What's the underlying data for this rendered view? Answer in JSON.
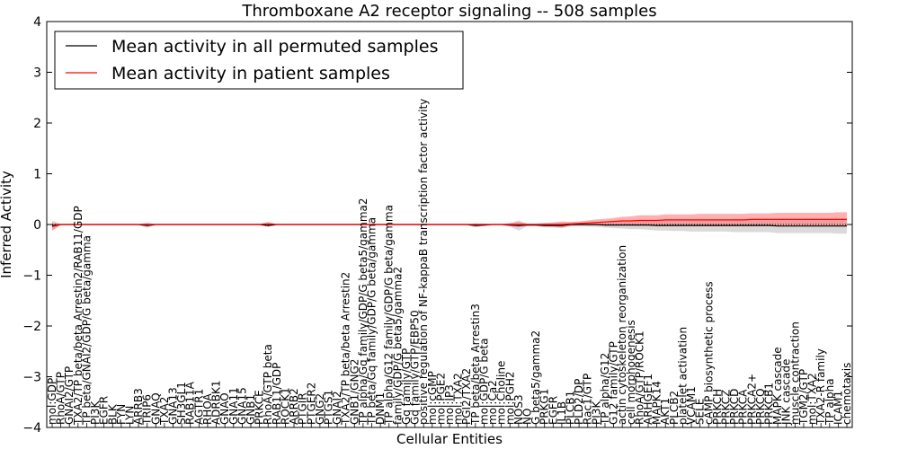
{
  "chart_data": {
    "type": "line",
    "title": "Thromboxane A2 receptor signaling -- 508 samples",
    "xlabel": "Cellular Entities",
    "ylabel": "Inferred Activity",
    "ylim": [
      -4,
      4
    ],
    "yticks": [
      -4,
      -3,
      -2,
      -1,
      0,
      1,
      2,
      3,
      4
    ],
    "legend_position": "top-left",
    "colors": {
      "permuted": "#000000",
      "patient": "#ff0000",
      "permuted_band": "#bbbbbb",
      "patient_band": "#ff7070"
    },
    "categories": [
      "mol:GDP",
      "RhoA/GTP",
      "GNAI2/GTP",
      "TXA2/TP beta/beta Arrestin2/RAB11/GDP",
      "TP beta/GNAI2/GDP/G beta/gamma",
      "PI3K",
      "EGFR",
      "BLK",
      "FYN",
      "LYN",
      "ARRB3",
      "TRIP6",
      "GNAQ",
      "TXA2",
      "GNA13",
      "SH3GL1",
      "RAB11A",
      "AGTR1",
      "RHOA",
      "ADRBK1",
      "GNAO",
      "GNA11",
      "GNA15",
      "GNB1",
      "PRKCE",
      "RhoA/GTP beta",
      "RAB11/GDP",
      "ROCK1",
      "ARRB2",
      "PTGIR",
      "PTGER2",
      "GNG2",
      "PTGS1",
      "GNAI2",
      "TXA2/TP beta/beta Arrestin2",
      "GNB1/GNG2",
      "TP alpha/Gq family/GDP/G beta5/gamma2",
      "TP beta/Gq family/GDP/G beta/gamma",
      "DNM1",
      "TP alpha/G12 family/GDP/G beta/gamma",
      "family/GDP/G beta5/gamma2",
      "Gq family/GTP",
      "Gq family/GTP/EBP50",
      "positive regulation of NF-kappaB transcription factor activity",
      "mol:cGMP",
      "mol:PGE2",
      "mol:IP3",
      "mol:TXA2",
      "PGI2/TXA2",
      "TP beta/beta Arrestin3",
      "mol:GDP/G beta",
      "mol:Ca2",
      "mol:Choline",
      "mol:PGH2",
      "NOS3",
      "NO",
      "G beta5/gamma2",
      "PRKG1",
      "EGFR",
      "IL1B",
      "PLCB1",
      "PLD2/DP",
      "Rac1/GTP",
      "PI3K",
      "TP alpha/G12",
      "G12 family/GTP",
      "actin cytoskeleton reorganization",
      "cell morphogenesis",
      "RhoA/GTP/ROCK1",
      "ARHGEF1",
      "MAPK14",
      "AKT1",
      "PLCB2",
      "platelet activation",
      "VCAM1",
      "SELE",
      "cAMP biosynthetic process",
      "PRKCH",
      "PRKCZ",
      "PRKCD",
      "PRKCA",
      "PRKCA2+",
      "PRKCQ",
      "PRKCB1",
      "MAPK cascade",
      "JNK cascade",
      "muscle contraction",
      "TGM2/GTP",
      "mol:TXA2",
      "TXA2-R family",
      "TP alpha",
      "ICAM1",
      "chemotaxis"
    ],
    "series": [
      {
        "name": "Mean activity in all permuted samples",
        "values": [
          -0.02,
          0.0,
          0.0,
          0.0,
          0.0,
          0.0,
          0.0,
          0.0,
          0.0,
          0.0,
          0.0,
          -0.02,
          0.0,
          0.0,
          0.0,
          0.0,
          0.0,
          0.0,
          0.0,
          0.0,
          0.0,
          0.0,
          0.0,
          0.0,
          0.0,
          -0.02,
          0.0,
          0.0,
          0.0,
          0.0,
          0.0,
          0.0,
          0.0,
          0.0,
          0.0,
          0.0,
          0.0,
          0.0,
          0.0,
          0.0,
          0.0,
          0.0,
          0.0,
          0.0,
          0.0,
          0.0,
          0.0,
          0.0,
          0.0,
          -0.02,
          -0.01,
          0.0,
          0.0,
          -0.01,
          -0.02,
          -0.01,
          -0.01,
          -0.02,
          -0.02,
          -0.02,
          0.0,
          0.0,
          0.0,
          0.0,
          -0.01,
          -0.01,
          -0.01,
          -0.01,
          -0.01,
          -0.01,
          -0.02,
          -0.02,
          -0.02,
          -0.02,
          -0.02,
          -0.02,
          -0.02,
          -0.02,
          -0.02,
          -0.02,
          -0.02,
          -0.02,
          -0.02,
          -0.02,
          -0.03,
          -0.03,
          -0.03,
          -0.03,
          -0.03,
          -0.03,
          -0.03,
          -0.03,
          -0.03
        ]
      },
      {
        "name": "Mean activity in patient samples",
        "values": [
          -0.04,
          0.0,
          0.0,
          0.0,
          0.0,
          0.0,
          0.0,
          0.0,
          0.0,
          0.0,
          0.0,
          0.0,
          0.0,
          0.0,
          0.0,
          0.0,
          0.0,
          0.0,
          0.0,
          0.0,
          0.0,
          0.0,
          0.0,
          0.0,
          0.0,
          0.01,
          0.0,
          0.0,
          0.0,
          0.0,
          0.0,
          0.0,
          0.0,
          0.0,
          0.0,
          0.0,
          0.0,
          0.0,
          0.0,
          0.0,
          0.0,
          0.0,
          0.0,
          0.0,
          0.0,
          0.0,
          0.0,
          0.0,
          0.0,
          0.0,
          0.0,
          0.0,
          0.0,
          0.0,
          0.0,
          0.0,
          0.0,
          0.0,
          0.0,
          0.0,
          0.01,
          0.02,
          0.03,
          0.04,
          0.05,
          0.06,
          0.07,
          0.07,
          0.08,
          0.08,
          0.08,
          0.09,
          0.09,
          0.09,
          0.09,
          0.09,
          0.09,
          0.09,
          0.09,
          0.09,
          0.09,
          0.1,
          0.1,
          0.1,
          0.1,
          0.1,
          0.1,
          0.1,
          0.1,
          0.1,
          0.1,
          0.1,
          0.1
        ]
      }
    ],
    "permuted_band_halfwidth": [
      0.1,
      0.01,
      0.01,
      0.01,
      0.01,
      0.01,
      0.01,
      0.01,
      0.01,
      0.01,
      0.01,
      0.05,
      0.01,
      0.01,
      0.01,
      0.01,
      0.01,
      0.01,
      0.01,
      0.01,
      0.01,
      0.01,
      0.01,
      0.01,
      0.01,
      0.03,
      0.01,
      0.01,
      0.01,
      0.01,
      0.01,
      0.01,
      0.01,
      0.01,
      0.01,
      0.01,
      0.01,
      0.01,
      0.01,
      0.01,
      0.01,
      0.01,
      0.01,
      0.01,
      0.01,
      0.01,
      0.01,
      0.01,
      0.01,
      0.04,
      0.02,
      0.01,
      0.01,
      0.03,
      0.1,
      0.02,
      0.02,
      0.04,
      0.04,
      0.05,
      0.03,
      0.03,
      0.04,
      0.05,
      0.05,
      0.06,
      0.07,
      0.08,
      0.08,
      0.09,
      0.1,
      0.1,
      0.11,
      0.11,
      0.12,
      0.12,
      0.12,
      0.12,
      0.12,
      0.13,
      0.13,
      0.13,
      0.13,
      0.13,
      0.14,
      0.14,
      0.14,
      0.14,
      0.14,
      0.14,
      0.14,
      0.15,
      0.15
    ],
    "patient_band_halfwidth": [
      0.08,
      0.01,
      0.01,
      0.01,
      0.01,
      0.01,
      0.01,
      0.01,
      0.01,
      0.01,
      0.01,
      0.03,
      0.01,
      0.01,
      0.01,
      0.01,
      0.01,
      0.01,
      0.01,
      0.01,
      0.01,
      0.01,
      0.01,
      0.01,
      0.01,
      0.04,
      0.01,
      0.01,
      0.01,
      0.01,
      0.01,
      0.01,
      0.01,
      0.01,
      0.01,
      0.01,
      0.01,
      0.01,
      0.01,
      0.01,
      0.01,
      0.01,
      0.01,
      0.01,
      0.01,
      0.01,
      0.01,
      0.01,
      0.01,
      0.02,
      0.02,
      0.01,
      0.01,
      0.03,
      0.05,
      0.02,
      0.02,
      0.03,
      0.04,
      0.06,
      0.04,
      0.04,
      0.05,
      0.06,
      0.06,
      0.07,
      0.08,
      0.09,
      0.1,
      0.1,
      0.1,
      0.11,
      0.11,
      0.11,
      0.11,
      0.12,
      0.12,
      0.12,
      0.12,
      0.12,
      0.12,
      0.12,
      0.12,
      0.12,
      0.13,
      0.13,
      0.13,
      0.13,
      0.13,
      0.13,
      0.13,
      0.14,
      0.14
    ]
  }
}
